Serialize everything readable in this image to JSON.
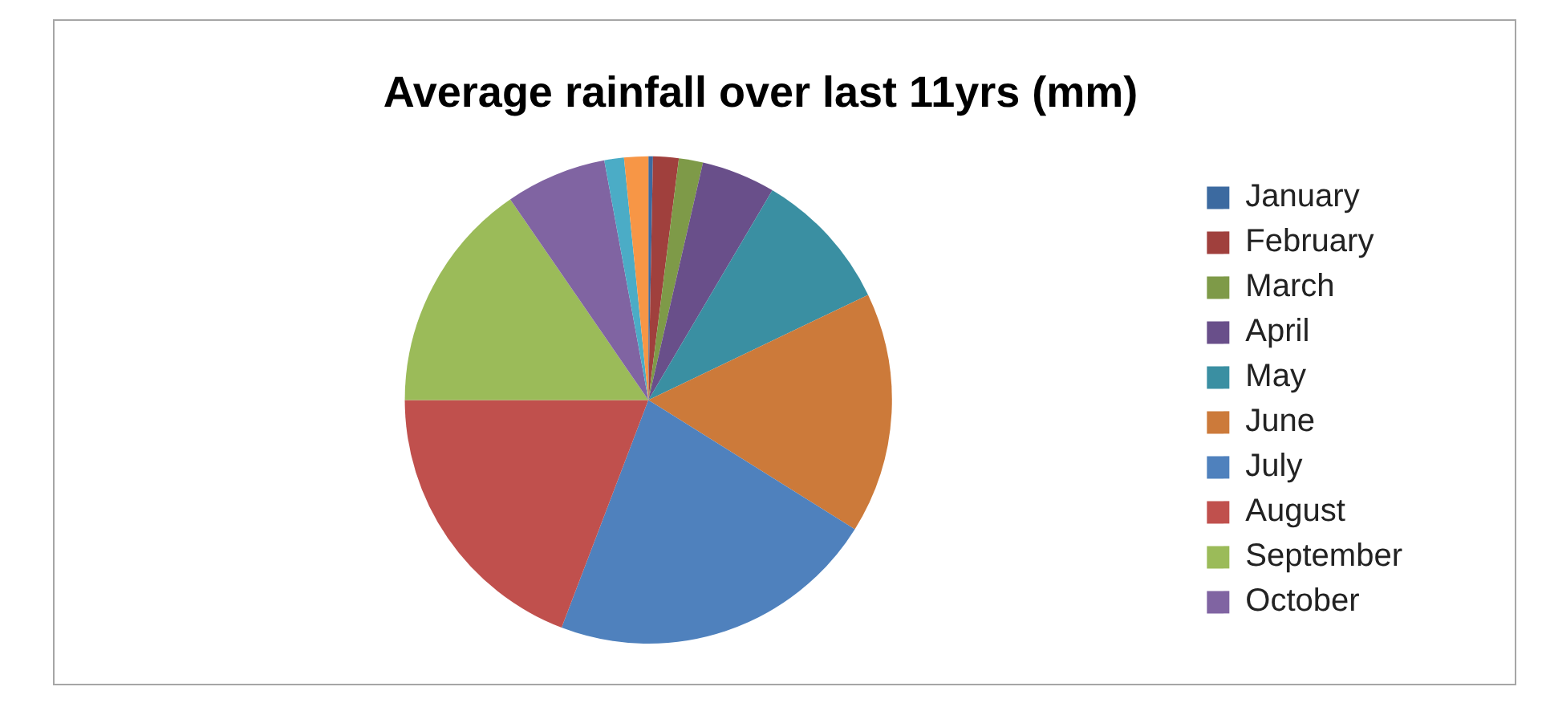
{
  "chart_data": {
    "type": "pie",
    "title": "Average rainfall over last 11yrs (mm)",
    "categories": [
      "January",
      "February",
      "March",
      "April",
      "May",
      "June",
      "July",
      "August",
      "September",
      "October",
      null,
      null
    ],
    "values": [
      0.3,
      1.7,
      1.6,
      4.9,
      9.4,
      16.0,
      21.9,
      19.2,
      15.4,
      6.7,
      1.3,
      1.6
    ],
    "colors": [
      "#3c6aa0",
      "#a0403d",
      "#7e9a48",
      "#694f8a",
      "#3a8fa2",
      "#cc7a3a",
      "#4f81bd",
      "#c0504d",
      "#9bbb59",
      "#8064a2",
      "#4bacc6",
      "#f79646"
    ],
    "legend": "right"
  }
}
